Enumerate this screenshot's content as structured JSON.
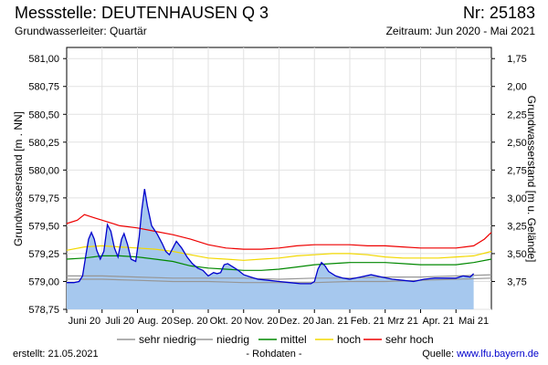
{
  "header": {
    "title": "Messstelle: DEUTENHAUSEN Q 3",
    "number": "Nr: 25183",
    "subtitle": "Grundwasserleiter: Quartär",
    "period": "Zeitraum: Jun 2020 - Mai 2021"
  },
  "footer": {
    "created": "erstellt:  21.05.2021",
    "rohdaten": "- Rohdaten -",
    "source_label": "Quelle: ",
    "source_link": "www.lfu.bayern.de"
  },
  "colors": {
    "fill": "#a6c8ee",
    "measured": "#0000cc",
    "sehr_niedrig": "#969696",
    "niedrig": "#969696",
    "mittel": "#008800",
    "hoch": "#f2d800",
    "sehr_hoch": "#ee0000",
    "grid": "#e2e2e2"
  },
  "chart_data": {
    "type": "area",
    "title": "Messstelle: DEUTENHAUSEN Q 3",
    "ylabel": "Grundwasserstand [m . NN]",
    "ylabel_right": "Grundwasserstand [m u. Gelände]",
    "ylim": [
      578.75,
      581.1
    ],
    "yticks": [
      "581,00",
      "580,75",
      "580,50",
      "580,25",
      "580,00",
      "579,75",
      "579,50",
      "579,25",
      "579,00",
      "578,75"
    ],
    "ytick_values": [
      581.0,
      580.75,
      580.5,
      580.25,
      580.0,
      579.75,
      579.5,
      579.25,
      579.0,
      578.75
    ],
    "yticks_right": [
      "1,75",
      "2,00",
      "2,25",
      "2,50",
      "2,75",
      "3,00",
      "3,25",
      "3,50",
      "3,75"
    ],
    "ytick_right_values": [
      1.75,
      2.0,
      2.25,
      2.5,
      2.75,
      3.0,
      3.25,
      3.5,
      3.75
    ],
    "right_axis_zero_level": 582.75,
    "xlim": [
      0,
      12
    ],
    "xticks": [
      "Juni 20",
      "Juli 20",
      "Aug. 20",
      "Sep. 20",
      "Okt. 20",
      "Nov. 20",
      "Dez. 20",
      "Jan. 21",
      "Feb. 21",
      "Mrz 21",
      "Apr. 21",
      "Mai 21"
    ],
    "grid": true,
    "legend": [
      "sehr niedrig",
      "niedrig",
      "mittel",
      "hoch",
      "sehr hoch"
    ],
    "legend_position": "bottom",
    "measured": {
      "x": [
        0.0,
        0.2,
        0.35,
        0.45,
        0.55,
        0.62,
        0.7,
        0.78,
        0.85,
        0.95,
        1.05,
        1.15,
        1.25,
        1.35,
        1.45,
        1.55,
        1.62,
        1.72,
        1.82,
        1.95,
        2.05,
        2.12,
        2.2,
        2.28,
        2.4,
        2.55,
        2.7,
        2.8,
        2.9,
        3.0,
        3.1,
        3.25,
        3.4,
        3.55,
        3.7,
        3.85,
        4.0,
        4.15,
        4.25,
        4.35,
        4.45,
        4.55,
        4.7,
        4.85,
        5.0,
        5.2,
        5.4,
        5.7,
        6.0,
        6.3,
        6.6,
        6.9,
        7.0,
        7.1,
        7.2,
        7.3,
        7.4,
        7.6,
        7.8,
        8.0,
        8.3,
        8.6,
        8.9,
        9.2,
        9.5,
        9.8,
        10.1,
        10.4,
        10.7,
        11.0,
        11.2,
        11.4,
        11.5
      ],
      "y": [
        578.99,
        578.99,
        579.0,
        579.05,
        579.25,
        579.38,
        579.44,
        579.38,
        579.28,
        579.2,
        579.27,
        579.51,
        579.45,
        579.3,
        579.22,
        579.38,
        579.43,
        579.33,
        579.2,
        579.18,
        579.4,
        579.64,
        579.83,
        579.68,
        579.5,
        579.43,
        579.34,
        579.27,
        579.24,
        579.3,
        579.36,
        579.3,
        579.22,
        579.16,
        579.12,
        579.1,
        579.05,
        579.08,
        579.07,
        579.08,
        579.15,
        579.16,
        579.13,
        579.1,
        579.06,
        579.04,
        579.02,
        579.01,
        579.0,
        578.99,
        578.98,
        578.98,
        579.0,
        579.11,
        579.17,
        579.14,
        579.09,
        579.05,
        579.03,
        579.02,
        579.04,
        579.06,
        579.04,
        579.02,
        579.01,
        579.0,
        579.02,
        579.03,
        579.03,
        579.03,
        579.05,
        579.04,
        579.07
      ]
    },
    "series": [
      {
        "name": "sehr niedrig",
        "x": [
          0,
          1,
          2,
          3,
          4,
          5,
          6,
          7,
          8,
          9,
          10,
          11,
          12
        ],
        "y": [
          579.02,
          579.02,
          579.01,
          579.0,
          579.0,
          578.99,
          578.99,
          578.99,
          579.0,
          579.0,
          579.01,
          579.02,
          579.03
        ]
      },
      {
        "name": "niedrig",
        "x": [
          0,
          1,
          2,
          3,
          4,
          5,
          6,
          7,
          8,
          9,
          10,
          11,
          12
        ],
        "y": [
          579.05,
          579.05,
          579.04,
          579.03,
          579.03,
          579.03,
          579.02,
          579.03,
          579.03,
          579.04,
          579.04,
          579.05,
          579.06
        ]
      },
      {
        "name": "mittel",
        "x": [
          0,
          0.5,
          1,
          1.5,
          2,
          2.5,
          3,
          3.5,
          4,
          4.5,
          5,
          5.5,
          6,
          6.5,
          7,
          7.5,
          8,
          8.5,
          9,
          9.5,
          10,
          10.5,
          11,
          11.5,
          12
        ],
        "y": [
          579.2,
          579.21,
          579.23,
          579.23,
          579.22,
          579.2,
          579.18,
          579.14,
          579.12,
          579.11,
          579.1,
          579.1,
          579.11,
          579.13,
          579.15,
          579.16,
          579.17,
          579.17,
          579.17,
          579.16,
          579.15,
          579.15,
          579.15,
          579.17,
          579.2
        ]
      },
      {
        "name": "hoch",
        "x": [
          0,
          0.5,
          1,
          1.5,
          2,
          2.5,
          3,
          3.5,
          4,
          4.5,
          5,
          5.5,
          6,
          6.5,
          7,
          7.5,
          8,
          8.5,
          9,
          9.5,
          10,
          10.5,
          11,
          11.5,
          12
        ],
        "y": [
          579.28,
          579.31,
          579.32,
          579.31,
          579.3,
          579.29,
          579.27,
          579.24,
          579.21,
          579.2,
          579.19,
          579.2,
          579.21,
          579.23,
          579.24,
          579.25,
          579.25,
          579.24,
          579.22,
          579.21,
          579.21,
          579.21,
          579.22,
          579.23,
          579.27
        ]
      },
      {
        "name": "sehr hoch",
        "x": [
          0,
          0.3,
          0.5,
          0.8,
          1,
          1.5,
          2,
          2.5,
          3,
          3.5,
          4,
          4.5,
          5,
          5.5,
          6,
          6.5,
          7,
          7.5,
          8,
          8.5,
          9,
          9.5,
          10,
          10.5,
          11,
          11.5,
          11.8,
          12
        ],
        "y": [
          579.52,
          579.55,
          579.6,
          579.57,
          579.55,
          579.5,
          579.48,
          579.45,
          579.42,
          579.38,
          579.33,
          579.3,
          579.29,
          579.29,
          579.3,
          579.32,
          579.33,
          579.33,
          579.33,
          579.32,
          579.32,
          579.31,
          579.3,
          579.3,
          579.3,
          579.32,
          579.38,
          579.44
        ]
      }
    ]
  }
}
